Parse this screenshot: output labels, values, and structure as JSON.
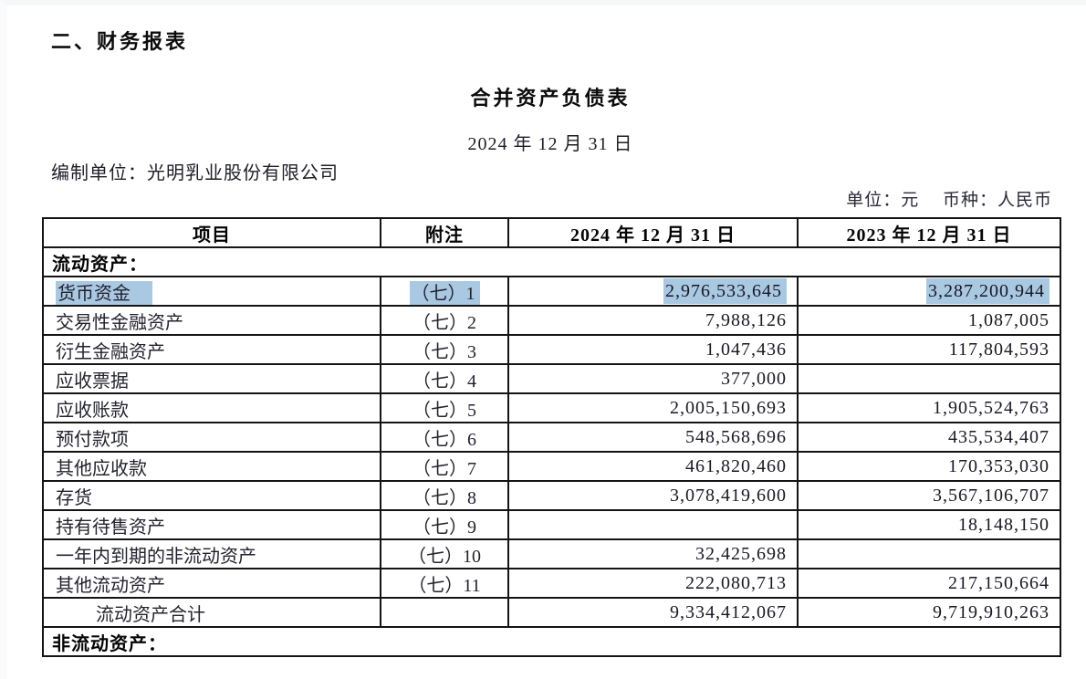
{
  "header": {
    "section_heading": "二、财务报表",
    "report_title": "合并资产负债表",
    "report_date": "2024 年 12 月 31 日",
    "prepared_by": "编制单位：光明乳业股份有限公司",
    "unit_currency": "单位：元　 币种：人民币"
  },
  "table": {
    "columns": [
      "项目",
      "附注",
      "2024 年 12 月 31 日",
      "2023 年 12 月 31 日"
    ],
    "rows": [
      {
        "type": "section",
        "item": "流动资产："
      },
      {
        "type": "item",
        "item": "货币资金",
        "note": "（七）1",
        "v2024": "2,976,533,645",
        "v2023": "3,287,200,944",
        "highlighted": true
      },
      {
        "type": "item",
        "item": "交易性金融资产",
        "note": "（七）2",
        "v2024": "7,988,126",
        "v2023": "1,087,005"
      },
      {
        "type": "item",
        "item": "衍生金融资产",
        "note": "（七）3",
        "v2024": "1,047,436",
        "v2023": "117,804,593"
      },
      {
        "type": "item",
        "item": "应收票据",
        "note": "（七）4",
        "v2024": "377,000",
        "v2023": ""
      },
      {
        "type": "item",
        "item": "应收账款",
        "note": "（七）5",
        "v2024": "2,005,150,693",
        "v2023": "1,905,524,763"
      },
      {
        "type": "item",
        "item": "预付款项",
        "note": "（七）6",
        "v2024": "548,568,696",
        "v2023": "435,534,407"
      },
      {
        "type": "item",
        "item": "其他应收款",
        "note": "（七）7",
        "v2024": "461,820,460",
        "v2023": "170,353,030"
      },
      {
        "type": "item",
        "item": "存货",
        "note": "（七）8",
        "v2024": "3,078,419,600",
        "v2023": "3,567,106,707"
      },
      {
        "type": "item",
        "item": "持有待售资产",
        "note": "（七）9",
        "v2024": "",
        "v2023": "18,148,150"
      },
      {
        "type": "item",
        "item": "一年内到期的非流动资产",
        "note": "（七）10",
        "v2024": "32,425,698",
        "v2023": ""
      },
      {
        "type": "item",
        "item": "其他流动资产",
        "note": "（七）11",
        "v2024": "222,080,713",
        "v2023": "217,150,664"
      },
      {
        "type": "total",
        "item": "流动资产合计",
        "note": "",
        "v2024": "9,334,412,067",
        "v2023": "9,719,910,263"
      },
      {
        "type": "section",
        "item": "非流动资产："
      }
    ]
  },
  "colors": {
    "highlight": "#a9c8e2",
    "table_border": "#141414",
    "text": "#181824"
  }
}
